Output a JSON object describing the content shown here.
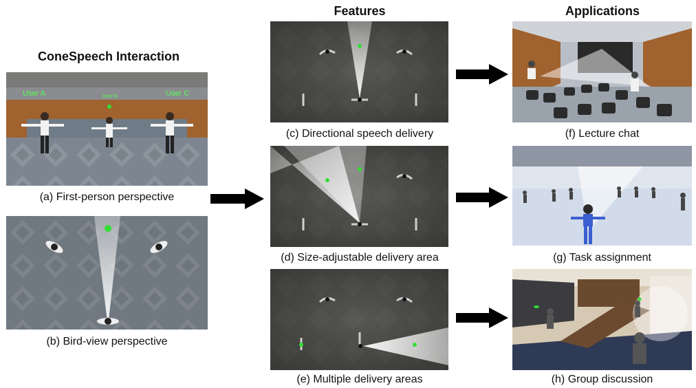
{
  "headings": {
    "interaction": "ConeSpeech Interaction",
    "features": "Features",
    "applications": "Applications"
  },
  "panel_a": {
    "caption": "(a)  First-person perspective",
    "user_labels": [
      "User A",
      "User B",
      "User C"
    ]
  },
  "panel_b": {
    "caption": "(b)  Bird-view perspective"
  },
  "panel_c": {
    "caption": "(c)  Directional speech delivery"
  },
  "panel_d": {
    "caption": "(d)  Size-adjustable delivery area"
  },
  "panel_e": {
    "caption": "(e)  Multiple delivery areas"
  },
  "panel_f": {
    "caption": "(f)  Lecture chat"
  },
  "panel_g": {
    "caption": "(g)  Task assignment"
  },
  "panel_h": {
    "caption": "(h)  Group discussion"
  },
  "colors": {
    "arrow": "#000000",
    "label_green": "#55ff55",
    "marker_green": "#33dd33",
    "floor_gray": "#4a4a48",
    "cone_white": "#ffffff"
  }
}
